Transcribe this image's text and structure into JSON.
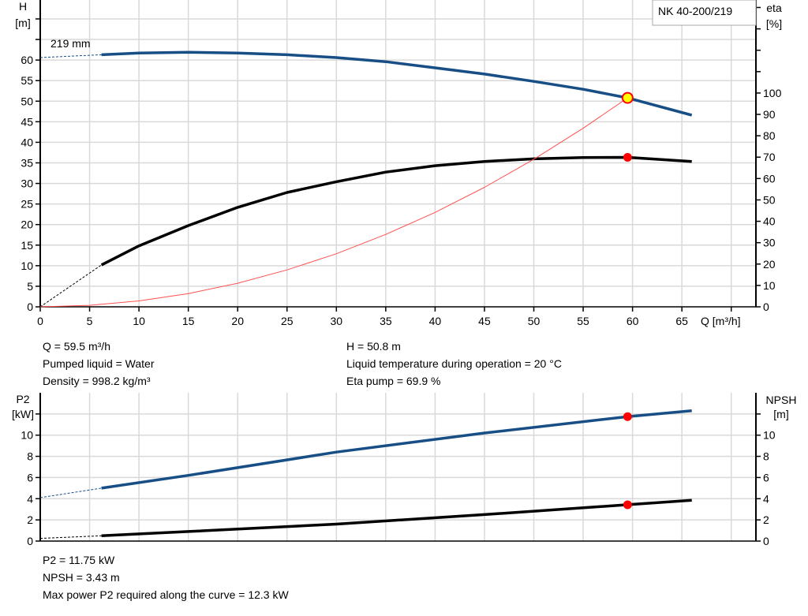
{
  "colors": {
    "head": "#174e86",
    "eta": "#000000",
    "system": "#ff5050",
    "p2": "#174e86",
    "npsh": "#000000",
    "duty_point": "#ff0000",
    "duty_point_head_fill": "#ffff00",
    "grid": "#d9d9d9"
  },
  "model_label": "219 mm",
  "pump_name": "NK 40-200/219",
  "chart_data": [
    {
      "type": "line",
      "grid": true,
      "xlabel": "Q [m³/h]",
      "ylabel_left": [
        "H",
        "[m]"
      ],
      "ylabel_right": [
        "eta",
        "[%]"
      ],
      "xlim": [
        0,
        72.5
      ],
      "ylim_left": [
        0,
        74.6
      ],
      "ylim_right": [
        0,
        143.5
      ],
      "x_ticks": [
        0,
        5,
        10,
        15,
        20,
        25,
        30,
        35,
        40,
        45,
        50,
        55,
        60,
        65
      ],
      "y_ticks_left": [
        0,
        5,
        10,
        15,
        20,
        25,
        30,
        35,
        40,
        45,
        50,
        55,
        60
      ],
      "y_ticks_right": [
        0,
        10,
        20,
        30,
        40,
        50,
        60,
        70,
        80,
        90,
        100
      ],
      "series": [
        {
          "key": "head",
          "axis": "left",
          "x": [
            6.2,
            10,
            15,
            20,
            25,
            30,
            35,
            40,
            45,
            50,
            55,
            59.5,
            66
          ],
          "y": [
            61.3,
            61.7,
            61.9,
            61.7,
            61.3,
            60.6,
            59.6,
            58.1,
            56.6,
            54.8,
            52.9,
            50.8,
            46.6
          ],
          "extrapolated": {
            "x": [
              0,
              6.2
            ],
            "y": [
              60.6,
              61.3
            ]
          }
        },
        {
          "key": "eta",
          "axis": "right",
          "x": [
            6.2,
            10,
            15,
            20,
            25,
            30,
            35,
            40,
            45,
            50,
            55,
            59.5,
            66
          ],
          "y": [
            19.6,
            28.5,
            38,
            46.5,
            53.5,
            58.5,
            63,
            66,
            68,
            69.2,
            69.8,
            69.9,
            68
          ],
          "extrapolated": {
            "x": [
              0,
              6.2
            ],
            "y": [
              0,
              19.6
            ]
          }
        },
        {
          "key": "system",
          "axis": "left",
          "x": [
            0,
            5,
            10,
            15,
            20,
            25,
            30,
            35,
            40,
            45,
            50,
            55,
            59.5
          ],
          "y": [
            0,
            0.36,
            1.43,
            3.23,
            5.74,
            8.97,
            12.9,
            17.6,
            22.96,
            29.06,
            35.88,
            43.41,
            50.8
          ]
        }
      ],
      "duty_point": {
        "q": 59.5,
        "h": 50.8,
        "eta": 69.9
      }
    },
    {
      "type": "line",
      "grid": true,
      "ylabel_left": [
        "P2",
        "[kW]"
      ],
      "ylabel_right": [
        "NPSH",
        "[m]"
      ],
      "xlim": [
        0,
        72.5
      ],
      "ylim_left": [
        0,
        14
      ],
      "ylim_right": [
        0,
        14
      ],
      "y_ticks_left": [
        0,
        2,
        4,
        6,
        8,
        10
      ],
      "y_ticks_right": [
        0,
        2,
        4,
        6,
        8,
        10
      ],
      "series": [
        {
          "key": "p2",
          "axis": "left",
          "x": [
            6.2,
            15,
            30,
            45,
            59.5,
            66
          ],
          "y": [
            5.0,
            6.2,
            8.4,
            10.2,
            11.75,
            12.3
          ],
          "extrapolated": {
            "x": [
              0,
              6.2
            ],
            "y": [
              4.1,
              5.0
            ]
          }
        },
        {
          "key": "npsh",
          "axis": "right",
          "x": [
            6.2,
            15,
            30,
            45,
            59.5,
            66
          ],
          "y": [
            0.5,
            0.9,
            1.6,
            2.5,
            3.43,
            3.85
          ],
          "extrapolated": {
            "x": [
              0,
              6.2
            ],
            "y": [
              0.25,
              0.5
            ]
          }
        }
      ],
      "duty_point": {
        "q": 59.5,
        "p2": 11.75,
        "npsh": 3.43
      }
    }
  ],
  "info_top": {
    "q": "Q = 59.5 m³/h",
    "liquid": "Pumped liquid = Water",
    "density": "Density = 998.2 kg/m³",
    "h": "H = 50.8 m",
    "temp": "Liquid temperature during operation = 20 °C",
    "eta": "Eta pump = 69.9 %"
  },
  "info_bottom": {
    "p2": "P2 = 11.75 kW",
    "npsh": "NPSH = 3.43 m",
    "max_power": "Max power P2 required along the curve = 12.3 kW"
  }
}
